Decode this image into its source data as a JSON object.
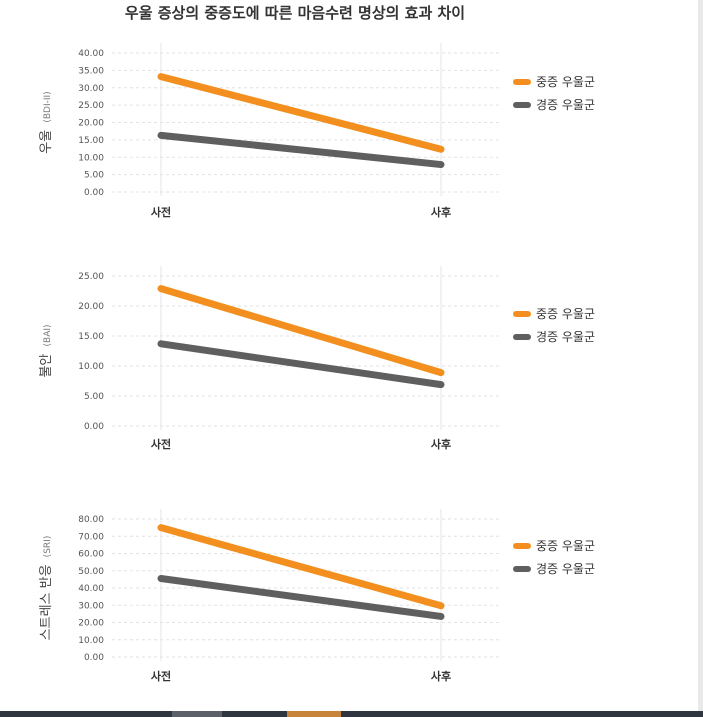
{
  "title": "우울 증상의 중증도에 따른 마음수련 명상의 효과 차이",
  "colors": {
    "severe": "#f28f1e",
    "mild": "#5f5f5f"
  },
  "chart_data": [
    {
      "type": "line",
      "ylabel": "우울",
      "ylabel_unit": "(BDI-II)",
      "categories": [
        "사전",
        "사후"
      ],
      "ylim": [
        0,
        40
      ],
      "yticks": [
        "0.00",
        "5.00",
        "10.00",
        "15.00",
        "20.00",
        "25.00",
        "30.00",
        "35.00",
        "40.00"
      ],
      "legend_position": "right",
      "series": [
        {
          "name": "중증 우울군",
          "values": [
            33.2,
            12.3
          ]
        },
        {
          "name": "경증 우울군",
          "values": [
            16.3,
            7.9
          ]
        }
      ]
    },
    {
      "type": "line",
      "ylabel": "불안",
      "ylabel_unit": "(BAI)",
      "categories": [
        "사전",
        "사후"
      ],
      "ylim": [
        0,
        25
      ],
      "yticks": [
        "0.00",
        "5.00",
        "10.00",
        "15.00",
        "20.00",
        "25.00"
      ],
      "legend_position": "right",
      "series": [
        {
          "name": "중증 우울군",
          "values": [
            22.9,
            8.9
          ]
        },
        {
          "name": "경증 우울군",
          "values": [
            13.7,
            6.9
          ]
        }
      ]
    },
    {
      "type": "line",
      "ylabel": "스트레스 반응",
      "ylabel_unit": "(SRI)",
      "categories": [
        "사전",
        "사후"
      ],
      "ylim": [
        0,
        80
      ],
      "yticks": [
        "0.00",
        "10.00",
        "20.00",
        "30.00",
        "40.00",
        "50.00",
        "60.00",
        "70.00",
        "80.00"
      ],
      "legend_position": "right",
      "series": [
        {
          "name": "중증 우울군",
          "values": [
            75.0,
            29.7
          ]
        },
        {
          "name": "경증 우울군",
          "values": [
            45.5,
            23.5
          ]
        }
      ]
    }
  ]
}
